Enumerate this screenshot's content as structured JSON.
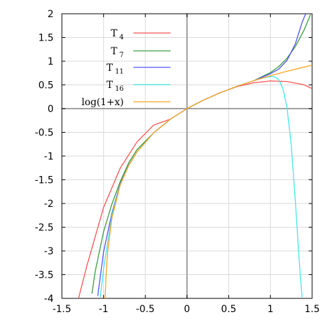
{
  "chart_data": {
    "type": "line",
    "title": "",
    "xlabel": "",
    "ylabel": "",
    "xlim": [
      -1.5,
      1.5
    ],
    "ylim": [
      -4,
      2
    ],
    "x_ticks": [
      -1.5,
      -1,
      -0.5,
      0,
      0.5,
      1,
      1.5
    ],
    "y_ticks": [
      -4,
      -3.5,
      -3,
      -2.5,
      -2,
      -1.5,
      -1,
      -0.5,
      0,
      0.5,
      1,
      1.5,
      2
    ],
    "x_tick_labels": [
      "-1.5",
      "-1",
      "-0.5",
      "0",
      "0.5",
      "1",
      "1.5"
    ],
    "y_tick_labels": [
      "-4",
      "-3.5",
      "-3",
      "-2.5",
      "-2",
      "-1.5",
      "-1",
      "-0.5",
      "0",
      "0.5",
      "1",
      "1.5",
      "2"
    ],
    "grid": true,
    "legend_position": "top-left",
    "series": [
      {
        "name": "T",
        "subscript": "4",
        "color": "#ff5050",
        "x": [
          -1.3,
          -1.2,
          -1.0,
          -0.8,
          -0.6,
          -0.4,
          -0.2,
          0,
          0.2,
          0.4,
          0.6,
          0.8,
          1.0,
          1.2,
          1.4,
          1.5
        ],
        "y": [
          -3.997,
          -3.312,
          -2.083,
          -1.253,
          -0.704,
          -0.347,
          -0.223,
          0,
          0.182,
          0.339,
          0.463,
          0.545,
          0.583,
          0.571,
          0.504,
          0.422
        ]
      },
      {
        "name": "T",
        "subscript": "7",
        "color": "#3a9a3a",
        "x": [
          -1.14,
          -1.1,
          -1.0,
          -0.9,
          -0.8,
          -0.7,
          -0.6,
          -0.4,
          -0.2,
          0,
          0.2,
          0.4,
          0.6,
          0.8,
          1.0,
          1.1,
          1.2,
          1.3,
          1.4,
          1.48
        ],
        "y": [
          -3.9,
          -3.43,
          -2.593,
          -2.009,
          -1.536,
          -1.147,
          -0.866,
          -0.51,
          -0.223,
          0,
          0.182,
          0.336,
          0.471,
          0.588,
          0.76,
          0.886,
          1.065,
          1.312,
          1.642,
          1.98
        ]
      },
      {
        "name": "T",
        "subscript": "11",
        "color": "#4f4fff",
        "x": [
          -1.07,
          -1.0,
          -0.9,
          -0.8,
          -0.7,
          -0.6,
          -0.4,
          -0.2,
          0,
          0.2,
          0.4,
          0.6,
          0.8,
          1.0,
          1.1,
          1.2,
          1.3,
          1.38,
          1.42
        ],
        "y": [
          -3.95,
          -3.02,
          -2.201,
          -1.58,
          -1.196,
          -0.914,
          -0.51,
          -0.223,
          0,
          0.182,
          0.336,
          0.47,
          0.588,
          0.736,
          0.832,
          1.02,
          1.37,
          1.82,
          1.99
        ]
      },
      {
        "name": "T",
        "subscript": "16",
        "color": "#40e8e8",
        "x": [
          -1.04,
          -1.0,
          -0.9,
          -0.8,
          -0.7,
          -0.6,
          -0.4,
          -0.2,
          0,
          0.2,
          0.4,
          0.6,
          0.8,
          0.9,
          1.0,
          1.05,
          1.1,
          1.15,
          1.2,
          1.25,
          1.3,
          1.35,
          1.38
        ],
        "y": [
          -3.98,
          -3.381,
          -2.245,
          -1.6,
          -1.203,
          -0.916,
          -0.51,
          -0.223,
          0,
          0.182,
          0.336,
          0.47,
          0.588,
          0.641,
          0.676,
          0.67,
          0.61,
          0.42,
          0.01,
          -0.78,
          -1.98,
          -3.33,
          -3.98
        ]
      },
      {
        "name": "log(1+x)",
        "subscript": "",
        "color": "#ffa31a",
        "x": [
          -0.982,
          -0.97,
          -0.95,
          -0.9,
          -0.8,
          -0.7,
          -0.6,
          -0.4,
          -0.2,
          0,
          0.2,
          0.4,
          0.6,
          0.8,
          1.0,
          1.2,
          1.5
        ],
        "y": [
          -4.017,
          -3.507,
          -2.996,
          -2.303,
          -1.609,
          -1.204,
          -0.916,
          -0.511,
          -0.223,
          0,
          0.182,
          0.336,
          0.47,
          0.588,
          0.693,
          0.788,
          0.916
        ]
      }
    ]
  }
}
